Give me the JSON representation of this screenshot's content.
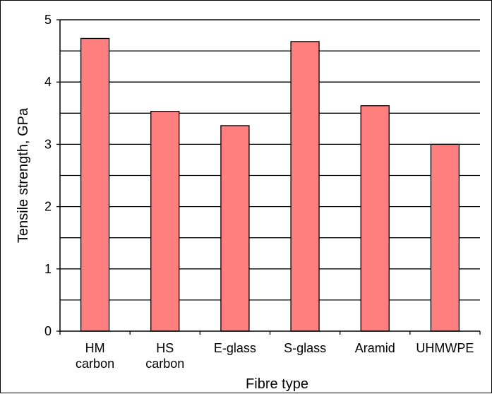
{
  "chart_data": {
    "type": "bar",
    "categories": [
      [
        "HM",
        "carbon"
      ],
      [
        "HS",
        "carbon"
      ],
      [
        "E-glass"
      ],
      [
        "S-glass"
      ],
      [
        "Aramid"
      ],
      [
        "UHMWPE"
      ]
    ],
    "values": [
      4.7,
      3.53,
      3.3,
      4.65,
      3.62,
      3.0
    ],
    "xlabel": "Fibre type",
    "ylabel": "Tensile strength, GPa",
    "ylim": [
      0,
      5
    ],
    "yticks": [
      0,
      1,
      2,
      3,
      4,
      5
    ],
    "minor_grid_step": 0.5,
    "grid": true,
    "colors": {
      "bar_fill": "#ff7f7f",
      "bar_stroke": "#000000",
      "grid": "#000000",
      "axis": "#000000"
    }
  }
}
